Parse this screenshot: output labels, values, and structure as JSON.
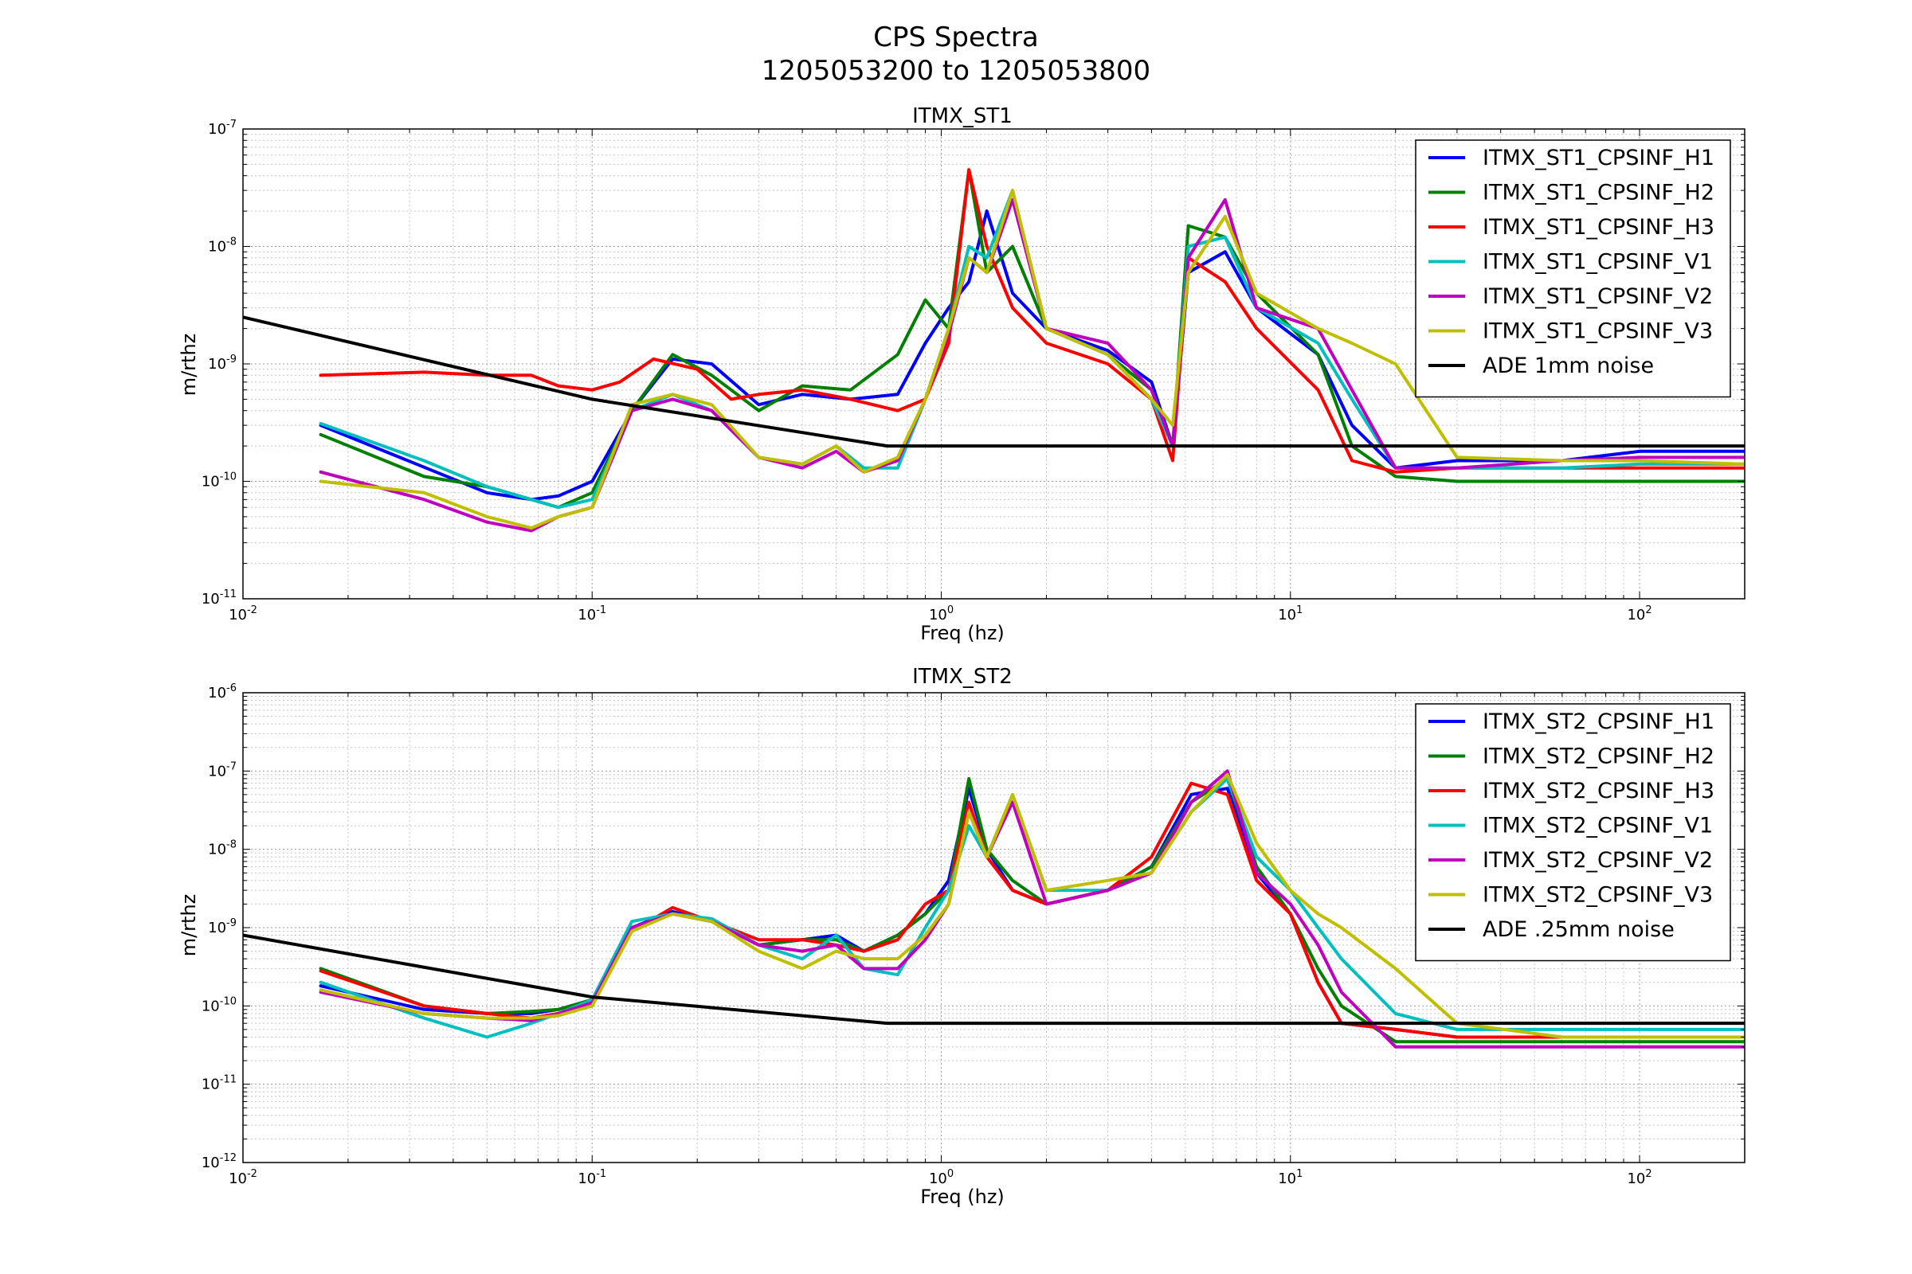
{
  "figure": {
    "title_line1": "CPS Spectra",
    "title_line2": "1205053200 to 1205053800"
  },
  "chart_data": [
    {
      "type": "line",
      "title": "ITMX_ST1",
      "xlabel": "Freq (hz)",
      "ylabel": "m/rthz",
      "xscale": "log",
      "yscale": "log",
      "xlim": [
        0.01,
        200
      ],
      "ylim": [
        1e-11,
        1e-07
      ],
      "grid": true,
      "legend": "top-right",
      "x_ticks": [
        {
          "value": 0.01,
          "base": "10",
          "exp": "-2"
        },
        {
          "value": 0.1,
          "base": "10",
          "exp": "-1"
        },
        {
          "value": 1,
          "base": "10",
          "exp": "0"
        },
        {
          "value": 10,
          "base": "10",
          "exp": "1"
        },
        {
          "value": 100,
          "base": "10",
          "exp": "2"
        }
      ],
      "y_ticks": [
        {
          "value": 1e-11,
          "base": "10",
          "exp": "-11"
        },
        {
          "value": 1e-10,
          "base": "10",
          "exp": "-10"
        },
        {
          "value": 1e-09,
          "base": "10",
          "exp": "-9"
        },
        {
          "value": 1e-08,
          "base": "10",
          "exp": "-8"
        },
        {
          "value": 1e-07,
          "base": "10",
          "exp": "-7"
        }
      ],
      "series": [
        {
          "name": "ITMX_ST1_CPSINF_H1",
          "color": "#0000ff",
          "x": [
            0.0167,
            0.05,
            0.067,
            0.08,
            0.1,
            0.13,
            0.17,
            0.22,
            0.3,
            0.4,
            0.55,
            0.75,
            0.9,
            1.05,
            1.2,
            1.35,
            1.6,
            2,
            3,
            4,
            4.6,
            5.1,
            6.5,
            8,
            12,
            15,
            20,
            30,
            60,
            100,
            200
          ],
          "y": [
            3e-10,
            8e-11,
            7e-11,
            7.5e-11,
            1e-10,
            4e-10,
            1.1e-09,
            1e-09,
            4.5e-10,
            5.5e-10,
            5e-10,
            5.5e-10,
            1.5e-09,
            3e-09,
            5e-09,
            2e-08,
            4e-09,
            2e-09,
            1.3e-09,
            7e-10,
            2e-10,
            6e-09,
            9e-09,
            3e-09,
            1.2e-09,
            3e-10,
            1.3e-10,
            1.5e-10,
            1.5e-10,
            1.8e-10,
            1.8e-10
          ]
        },
        {
          "name": "ITMX_ST1_CPSINF_H2",
          "color": "#008000",
          "x": [
            0.0167,
            0.033,
            0.05,
            0.067,
            0.08,
            0.1,
            0.13,
            0.17,
            0.22,
            0.3,
            0.4,
            0.55,
            0.75,
            0.9,
            1.05,
            1.2,
            1.35,
            1.6,
            2,
            3,
            4,
            4.6,
            5.1,
            6.5,
            8,
            12,
            15,
            20,
            30,
            60,
            100,
            200
          ],
          "y": [
            2.5e-10,
            1.1e-10,
            9e-11,
            7e-11,
            6e-11,
            8e-11,
            4e-10,
            1.2e-09,
            8e-10,
            4e-10,
            6.5e-10,
            6e-10,
            1.2e-09,
            3.5e-09,
            2e-09,
            4.5e-08,
            6e-09,
            1e-08,
            2e-09,
            1.2e-09,
            6e-10,
            2e-10,
            1.5e-08,
            1.2e-08,
            4e-09,
            1.2e-09,
            2e-10,
            1.1e-10,
            1e-10,
            1e-10,
            1e-10,
            1e-10
          ]
        },
        {
          "name": "ITMX_ST1_CPSINF_H3",
          "color": "#ff0000",
          "x": [
            0.0167,
            0.033,
            0.05,
            0.067,
            0.08,
            0.1,
            0.12,
            0.15,
            0.2,
            0.25,
            0.3,
            0.4,
            0.55,
            0.75,
            0.9,
            1.05,
            1.2,
            1.35,
            1.6,
            2,
            3,
            4,
            4.6,
            5.1,
            6.5,
            8,
            12,
            15,
            20,
            30,
            60,
            100,
            200
          ],
          "y": [
            8e-10,
            8.5e-10,
            8e-10,
            8e-10,
            6.5e-10,
            6e-10,
            7e-10,
            1.1e-09,
            9e-10,
            5e-10,
            5.5e-10,
            6e-10,
            5e-10,
            4e-10,
            5e-10,
            1.5e-09,
            4.5e-08,
            1e-08,
            3e-09,
            1.5e-09,
            1e-09,
            5e-10,
            1.5e-10,
            8e-09,
            5e-09,
            2e-09,
            6e-10,
            1.5e-10,
            1.2e-10,
            1.3e-10,
            1.3e-10,
            1.3e-10,
            1.3e-10
          ]
        },
        {
          "name": "ITMX_ST1_CPSINF_V1",
          "color": "#00bfbf",
          "x": [
            0.0167,
            0.033,
            0.05,
            0.067,
            0.08,
            0.1,
            0.13,
            0.17,
            0.22,
            0.3,
            0.4,
            0.5,
            0.6,
            0.75,
            0.9,
            1.05,
            1.2,
            1.35,
            1.6,
            2,
            3,
            4,
            4.6,
            5.1,
            6.5,
            8,
            12,
            15,
            20,
            30,
            60,
            100,
            200
          ],
          "y": [
            3.1e-10,
            1.5e-10,
            9e-11,
            7e-11,
            6e-11,
            7e-11,
            4e-10,
            5.5e-10,
            4e-10,
            1.6e-10,
            1.4e-10,
            2e-10,
            1.3e-10,
            1.3e-10,
            5e-10,
            2e-09,
            1e-08,
            8e-09,
            3e-08,
            2e-09,
            1.2e-09,
            5e-10,
            2e-10,
            1e-08,
            1.2e-08,
            3e-09,
            1.5e-09,
            5e-10,
            1.3e-10,
            1.3e-10,
            1.3e-10,
            1.4e-10,
            1.4e-10
          ]
        },
        {
          "name": "ITMX_ST1_CPSINF_V2",
          "color": "#bf00bf",
          "x": [
            0.0167,
            0.033,
            0.05,
            0.067,
            0.08,
            0.1,
            0.13,
            0.17,
            0.22,
            0.3,
            0.4,
            0.5,
            0.6,
            0.75,
            0.9,
            1.05,
            1.2,
            1.35,
            1.6,
            2,
            3,
            4,
            4.6,
            5.1,
            6.5,
            8,
            12,
            15,
            20,
            30,
            60,
            100,
            200
          ],
          "y": [
            1.2e-10,
            7e-11,
            4.5e-11,
            3.8e-11,
            5e-11,
            6e-11,
            4e-10,
            5e-10,
            4e-10,
            1.6e-10,
            1.3e-10,
            1.8e-10,
            1.2e-10,
            1.5e-10,
            5e-10,
            1.8e-09,
            8e-09,
            6e-09,
            2.5e-08,
            2e-09,
            1.5e-09,
            6e-10,
            2e-10,
            8e-09,
            2.5e-08,
            3e-09,
            2e-09,
            6e-10,
            1.3e-10,
            1.3e-10,
            1.5e-10,
            1.6e-10,
            1.6e-10
          ]
        },
        {
          "name": "ITMX_ST1_CPSINF_V3",
          "color": "#bfbf00",
          "x": [
            0.0167,
            0.033,
            0.05,
            0.067,
            0.08,
            0.1,
            0.13,
            0.17,
            0.22,
            0.3,
            0.4,
            0.5,
            0.6,
            0.75,
            0.9,
            1.05,
            1.2,
            1.35,
            1.6,
            2,
            3,
            4,
            4.6,
            5.1,
            6.5,
            8,
            12,
            15,
            20,
            30,
            60,
            100,
            200
          ],
          "y": [
            1e-10,
            8e-11,
            5e-11,
            4e-11,
            5e-11,
            6e-11,
            4.5e-10,
            5.5e-10,
            4.5e-10,
            1.6e-10,
            1.4e-10,
            2e-10,
            1.2e-10,
            1.6e-10,
            5e-10,
            2e-09,
            8e-09,
            6e-09,
            3e-08,
            2e-09,
            1.2e-09,
            5e-10,
            3e-10,
            6e-09,
            1.8e-08,
            4e-09,
            2e-09,
            1.5e-09,
            1e-09,
            1.6e-10,
            1.5e-10,
            1.5e-10,
            1.4e-10
          ]
        },
        {
          "name": "ADE 1mm noise",
          "color": "#000000",
          "x": [
            0.01,
            0.1,
            0.7,
            200
          ],
          "y": [
            2.5e-09,
            5e-10,
            2e-10,
            2e-10
          ]
        }
      ]
    },
    {
      "type": "line",
      "title": "ITMX_ST2",
      "xlabel": "Freq (hz)",
      "ylabel": "m/rthz",
      "xscale": "log",
      "yscale": "log",
      "xlim": [
        0.01,
        200
      ],
      "ylim": [
        1e-12,
        1e-06
      ],
      "grid": true,
      "legend": "top-right",
      "x_ticks": [
        {
          "value": 0.01,
          "base": "10",
          "exp": "-2"
        },
        {
          "value": 0.1,
          "base": "10",
          "exp": "-1"
        },
        {
          "value": 1,
          "base": "10",
          "exp": "0"
        },
        {
          "value": 10,
          "base": "10",
          "exp": "1"
        },
        {
          "value": 100,
          "base": "10",
          "exp": "2"
        }
      ],
      "y_ticks": [
        {
          "value": 1e-12,
          "base": "10",
          "exp": "-12"
        },
        {
          "value": 1e-11,
          "base": "10",
          "exp": "-11"
        },
        {
          "value": 1e-10,
          "base": "10",
          "exp": "-10"
        },
        {
          "value": 1e-09,
          "base": "10",
          "exp": "-9"
        },
        {
          "value": 1e-08,
          "base": "10",
          "exp": "-8"
        },
        {
          "value": 1e-07,
          "base": "10",
          "exp": "-7"
        },
        {
          "value": 1e-06,
          "base": "10",
          "exp": "-6"
        }
      ],
      "series": [
        {
          "name": "ITMX_ST2_CPSINF_H1",
          "color": "#0000ff",
          "x": [
            0.0167,
            0.033,
            0.05,
            0.067,
            0.08,
            0.1,
            0.13,
            0.17,
            0.22,
            0.3,
            0.4,
            0.5,
            0.6,
            0.75,
            0.9,
            1.05,
            1.2,
            1.35,
            1.6,
            2,
            3,
            4,
            5.2,
            6.6,
            8,
            10,
            12,
            14,
            20,
            30,
            60,
            100,
            200
          ],
          "y": [
            1.8e-10,
            9e-11,
            8e-11,
            8e-11,
            9e-11,
            1.2e-10,
            1e-09,
            1.6e-09,
            1.2e-09,
            6e-10,
            7e-10,
            8e-10,
            5e-10,
            8e-10,
            1.5e-09,
            4e-09,
            6e-08,
            1e-08,
            3e-09,
            2e-09,
            3e-09,
            6e-09,
            5e-08,
            6e-08,
            5e-09,
            1.5e-09,
            2e-10,
            6e-11,
            5e-11,
            4e-11,
            4e-11,
            4e-11,
            4e-11
          ]
        },
        {
          "name": "ITMX_ST2_CPSINF_H2",
          "color": "#008000",
          "x": [
            0.0167,
            0.033,
            0.05,
            0.067,
            0.08,
            0.1,
            0.13,
            0.17,
            0.22,
            0.3,
            0.4,
            0.5,
            0.6,
            0.75,
            0.9,
            1.05,
            1.2,
            1.35,
            1.6,
            2,
            3,
            4,
            5.2,
            6.6,
            8,
            10,
            12,
            14,
            20,
            30,
            60,
            100,
            200
          ],
          "y": [
            3e-10,
            1e-10,
            8e-11,
            8.5e-11,
            9e-11,
            1.2e-10,
            1e-09,
            1.5e-09,
            1.2e-09,
            6e-10,
            7e-10,
            7e-10,
            5e-10,
            8e-10,
            1.5e-09,
            3e-09,
            8e-08,
            1e-08,
            4e-09,
            2e-09,
            3e-09,
            6e-09,
            4e-08,
            8e-08,
            6e-09,
            1.5e-09,
            3e-10,
            1e-10,
            3.5e-11,
            3.5e-11,
            3.5e-11,
            3.5e-11,
            3.5e-11
          ]
        },
        {
          "name": "ITMX_ST2_CPSINF_H3",
          "color": "#ff0000",
          "x": [
            0.0167,
            0.033,
            0.05,
            0.067,
            0.08,
            0.1,
            0.13,
            0.17,
            0.22,
            0.3,
            0.4,
            0.5,
            0.6,
            0.75,
            0.9,
            1.05,
            1.2,
            1.35,
            1.6,
            2,
            3,
            4,
            5.2,
            6.6,
            8,
            10,
            12,
            14,
            20,
            30,
            60,
            100,
            200
          ],
          "y": [
            2.8e-10,
            1e-10,
            8e-11,
            7e-11,
            8e-11,
            1.1e-10,
            9e-10,
            1.8e-09,
            1.2e-09,
            7e-10,
            7e-10,
            6e-10,
            5e-10,
            7e-10,
            2e-09,
            3e-09,
            4e-08,
            8e-09,
            3e-09,
            2e-09,
            3e-09,
            8e-09,
            7e-08,
            5e-08,
            4e-09,
            1.5e-09,
            2e-10,
            6e-11,
            5e-11,
            4e-11,
            4e-11,
            4e-11,
            4e-11
          ]
        },
        {
          "name": "ITMX_ST2_CPSINF_V1",
          "color": "#00bfbf",
          "x": [
            0.0167,
            0.033,
            0.05,
            0.067,
            0.08,
            0.1,
            0.13,
            0.17,
            0.22,
            0.3,
            0.4,
            0.5,
            0.6,
            0.75,
            0.9,
            1.05,
            1.2,
            1.35,
            1.6,
            2,
            3,
            4,
            5.2,
            6.6,
            8,
            10,
            12,
            14,
            20,
            30,
            60,
            100,
            200
          ],
          "y": [
            2e-10,
            7e-11,
            4e-11,
            6e-11,
            8e-11,
            1.2e-10,
            1.2e-09,
            1.5e-09,
            1.3e-09,
            6e-10,
            4e-10,
            8e-10,
            3e-10,
            2.5e-10,
            1e-09,
            3e-09,
            2e-08,
            8e-09,
            5e-08,
            3e-09,
            3e-09,
            5e-09,
            3e-08,
            8e-08,
            8e-09,
            3e-09,
            1e-09,
            4e-10,
            8e-11,
            5e-11,
            5e-11,
            5e-11,
            5e-11
          ]
        },
        {
          "name": "ITMX_ST2_CPSINF_V2",
          "color": "#bf00bf",
          "x": [
            0.0167,
            0.033,
            0.05,
            0.067,
            0.08,
            0.1,
            0.13,
            0.17,
            0.22,
            0.3,
            0.4,
            0.5,
            0.6,
            0.75,
            0.9,
            1.05,
            1.2,
            1.35,
            1.6,
            2,
            3,
            4,
            5.2,
            6.6,
            8,
            10,
            12,
            14,
            20,
            30,
            60,
            100,
            200
          ],
          "y": [
            1.5e-10,
            8e-11,
            7e-11,
            6.5e-11,
            8e-11,
            1.1e-10,
            1e-09,
            1.5e-09,
            1.2e-09,
            6e-10,
            5e-10,
            6e-10,
            3e-10,
            3e-10,
            7e-10,
            2e-09,
            3e-08,
            8e-09,
            4e-08,
            2e-09,
            3e-09,
            5e-09,
            4e-08,
            1e-07,
            5e-09,
            2e-09,
            6e-10,
            1.5e-10,
            3e-11,
            3e-11,
            3e-11,
            3e-11,
            3e-11
          ]
        },
        {
          "name": "ITMX_ST2_CPSINF_V3",
          "color": "#bfbf00",
          "x": [
            0.0167,
            0.033,
            0.05,
            0.067,
            0.08,
            0.1,
            0.13,
            0.17,
            0.22,
            0.3,
            0.4,
            0.5,
            0.6,
            0.75,
            0.9,
            1.05,
            1.2,
            1.35,
            1.6,
            2,
            3,
            4,
            5.2,
            6.6,
            8,
            10,
            12,
            14,
            20,
            30,
            60,
            100,
            200
          ],
          "y": [
            1.6e-10,
            8e-11,
            7e-11,
            7e-11,
            7.5e-11,
            1e-10,
            9e-10,
            1.5e-09,
            1.2e-09,
            5e-10,
            3e-10,
            5e-10,
            4e-10,
            4e-10,
            8e-10,
            2e-09,
            3e-08,
            8e-09,
            5e-08,
            3e-09,
            4e-09,
            5e-09,
            3e-08,
            9e-08,
            1.2e-08,
            3e-09,
            1.5e-09,
            1e-09,
            3e-10,
            6e-11,
            4e-11,
            4e-11,
            4e-11
          ]
        },
        {
          "name": "ADE .25mm noise",
          "color": "#000000",
          "x": [
            0.01,
            0.1,
            0.7,
            200
          ],
          "y": [
            8e-10,
            1.3e-10,
            6e-11,
            6e-11
          ]
        }
      ]
    }
  ]
}
